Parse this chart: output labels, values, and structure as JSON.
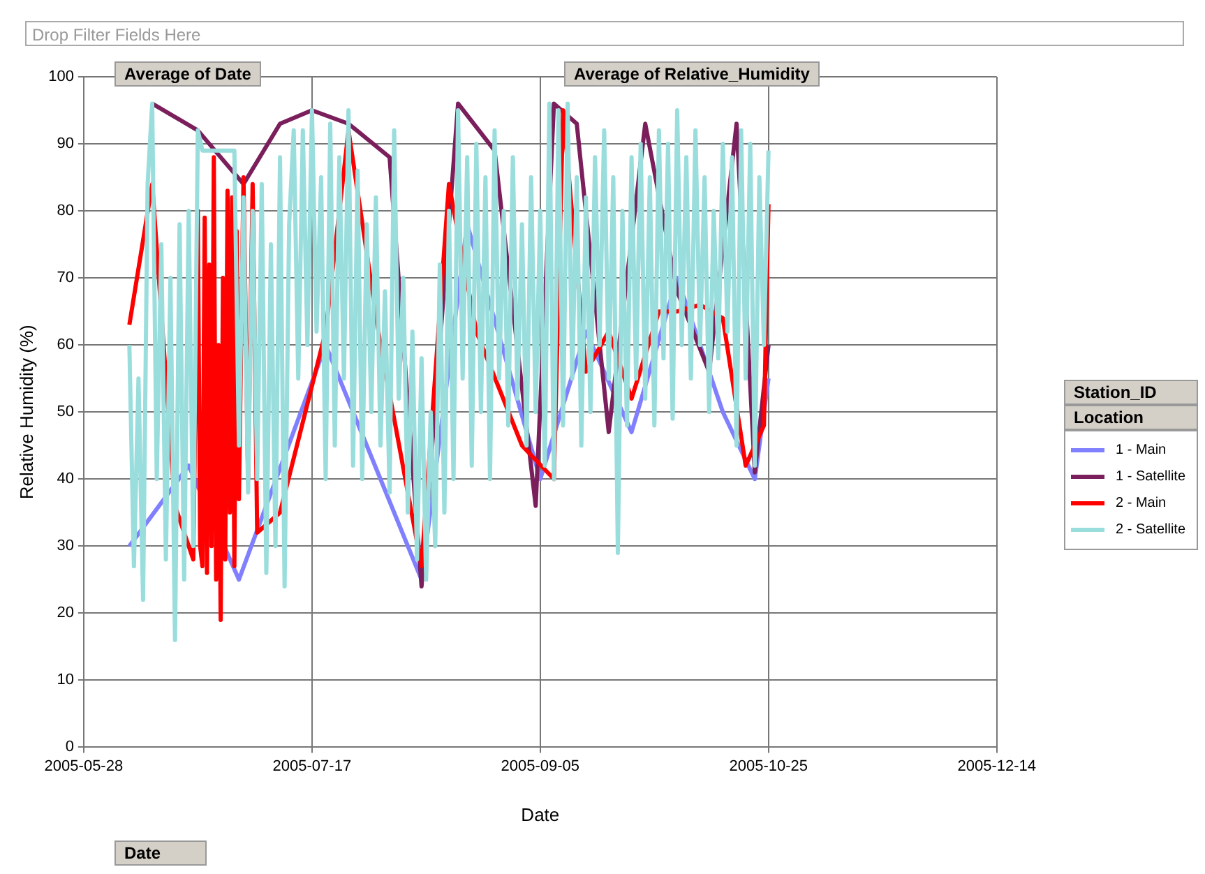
{
  "chart_data": {
    "type": "line",
    "xlabel": "Date",
    "ylabel": "Relative Humidity (%)",
    "legend_title": "Station_ID",
    "legend": "right",
    "grid": true,
    "marker": "none",
    "line_style": "solid",
    "annotations": [
      "Drop Filter Fields Here",
      "Average of Date",
      "Average of Relative_Humidity",
      "Location",
      "Date"
    ],
    "xlim": [
      "2005-05-28",
      "2005-12-14"
    ],
    "xticks": [
      "2005-05-28",
      "2005-07-17",
      "2005-09-05",
      "2005-10-25",
      "2005-12-14"
    ],
    "ylim": [
      0,
      100
    ],
    "yticks": [
      0,
      10,
      20,
      30,
      40,
      50,
      60,
      70,
      80,
      90,
      100
    ],
    "series": [
      {
        "name": "1 - Main",
        "color": "#8080ff",
        "x": [
          "2005-06-07",
          "2005-06-20",
          "2005-07-01",
          "2005-07-20",
          "2005-08-10",
          "2005-08-20",
          "2005-09-05",
          "2005-09-15",
          "2005-09-25",
          "2005-10-05",
          "2005-10-15",
          "2005-10-22",
          "2005-10-25"
        ],
        "values": [
          30,
          42,
          25,
          60,
          25,
          78,
          40,
          62,
          47,
          70,
          50,
          40,
          55
        ]
      },
      {
        "name": "1 - Satellite",
        "color": "#7a1f5c",
        "x": [
          "2005-06-12",
          "2005-06-22",
          "2005-07-02",
          "2005-07-10",
          "2005-07-17",
          "2005-07-25",
          "2005-08-03",
          "2005-08-10",
          "2005-08-18",
          "2005-08-26",
          "2005-09-04",
          "2005-09-08",
          "2005-09-13",
          "2005-09-20",
          "2005-09-28",
          "2005-10-05",
          "2005-10-12",
          "2005-10-18",
          "2005-10-22",
          "2005-10-25"
        ],
        "values": [
          96,
          92,
          84,
          93,
          95,
          93,
          88,
          24,
          96,
          89,
          36,
          96,
          93,
          47,
          93,
          68,
          56,
          93,
          41,
          60
        ]
      },
      {
        "name": "2 - Main",
        "color": "#ff0000",
        "x": [
          "2005-06-07",
          "2005-06-12",
          "2005-06-17",
          "2005-06-21",
          "2005-06-22",
          "2005-06-22T12:00",
          "2005-06-23",
          "2005-06-23T12:00",
          "2005-06-24",
          "2005-06-24T12:00",
          "2005-06-25",
          "2005-06-25T12:00",
          "2005-06-26",
          "2005-06-26T12:00",
          "2005-06-27",
          "2005-06-27T12:00",
          "2005-06-28",
          "2005-06-28T12:00",
          "2005-06-29",
          "2005-06-29T12:00",
          "2005-06-30",
          "2005-06-30T12:00",
          "2005-07-01",
          "2005-07-02",
          "2005-07-03",
          "2005-07-04",
          "2005-07-05",
          "2005-07-10",
          "2005-07-20",
          "2005-07-25",
          "2005-08-01",
          "2005-08-10",
          "2005-08-16",
          "2005-08-22",
          "2005-09-01",
          "2005-09-08",
          "2005-09-10",
          "2005-09-15",
          "2005-09-20",
          "2005-09-25",
          "2005-10-01",
          "2005-10-05",
          "2005-10-10",
          "2005-10-15",
          "2005-10-20",
          "2005-10-24",
          "2005-10-25"
        ],
        "values": [
          63,
          84,
          36,
          28,
          80,
          30,
          27,
          79,
          26,
          72,
          30,
          88,
          25,
          60,
          19,
          70,
          28,
          83,
          35,
          82,
          27,
          77,
          37,
          85,
          40,
          84,
          32,
          35,
          62,
          92,
          60,
          27,
          84,
          62,
          45,
          40,
          95,
          56,
          62,
          52,
          65,
          65,
          66,
          64,
          42,
          48,
          81
        ]
      },
      {
        "name": "2 - Satellite",
        "color": "#99dddd",
        "x": [
          "2005-06-07",
          "2005-06-08",
          "2005-06-09",
          "2005-06-10",
          "2005-06-11",
          "2005-06-12",
          "2005-06-13",
          "2005-06-14",
          "2005-06-15",
          "2005-06-16",
          "2005-06-17",
          "2005-06-18",
          "2005-06-19",
          "2005-06-20",
          "2005-06-21",
          "2005-06-22",
          "2005-06-23",
          "2005-06-30",
          "2005-07-01",
          "2005-07-02",
          "2005-07-03",
          "2005-07-04",
          "2005-07-05",
          "2005-07-06",
          "2005-07-07",
          "2005-07-08",
          "2005-07-09",
          "2005-07-10",
          "2005-07-11",
          "2005-07-12",
          "2005-07-13",
          "2005-07-14",
          "2005-07-15",
          "2005-07-16",
          "2005-07-17",
          "2005-07-18",
          "2005-07-19",
          "2005-07-20",
          "2005-07-21",
          "2005-07-22",
          "2005-07-23",
          "2005-07-24",
          "2005-07-25",
          "2005-07-26",
          "2005-07-27",
          "2005-07-28",
          "2005-07-29",
          "2005-07-30",
          "2005-07-31",
          "2005-08-01",
          "2005-08-02",
          "2005-08-03",
          "2005-08-04",
          "2005-08-05",
          "2005-08-06",
          "2005-08-07",
          "2005-08-08",
          "2005-08-09",
          "2005-08-10",
          "2005-08-11",
          "2005-08-12",
          "2005-08-13",
          "2005-08-14",
          "2005-08-15",
          "2005-08-16",
          "2005-08-17",
          "2005-08-18",
          "2005-08-19",
          "2005-08-20",
          "2005-08-21",
          "2005-08-22",
          "2005-08-23",
          "2005-08-24",
          "2005-08-25",
          "2005-08-26",
          "2005-08-27",
          "2005-08-28",
          "2005-08-29",
          "2005-08-30",
          "2005-08-31",
          "2005-09-01",
          "2005-09-02",
          "2005-09-03",
          "2005-09-04",
          "2005-09-05",
          "2005-09-06",
          "2005-09-07",
          "2005-09-08",
          "2005-09-09",
          "2005-09-10",
          "2005-09-11",
          "2005-09-12",
          "2005-09-13",
          "2005-09-14",
          "2005-09-15",
          "2005-09-16",
          "2005-09-17",
          "2005-09-18",
          "2005-09-19",
          "2005-09-20",
          "2005-09-21",
          "2005-09-22",
          "2005-09-23",
          "2005-09-24",
          "2005-09-25",
          "2005-09-26",
          "2005-09-27",
          "2005-09-28",
          "2005-09-29",
          "2005-09-30",
          "2005-10-01",
          "2005-10-02",
          "2005-10-03",
          "2005-10-04",
          "2005-10-05",
          "2005-10-06",
          "2005-10-07",
          "2005-10-08",
          "2005-10-09",
          "2005-10-10",
          "2005-10-11",
          "2005-10-12",
          "2005-10-13",
          "2005-10-14",
          "2005-10-15",
          "2005-10-16",
          "2005-10-17",
          "2005-10-18",
          "2005-10-19",
          "2005-10-20",
          "2005-10-21",
          "2005-10-22",
          "2005-10-23",
          "2005-10-24",
          "2005-10-25"
        ],
        "values": [
          60,
          27,
          55,
          22,
          84,
          96,
          40,
          75,
          28,
          70,
          16,
          78,
          25,
          80,
          30,
          92,
          89,
          89,
          45,
          82,
          38,
          80,
          40,
          84,
          26,
          75,
          30,
          88,
          24,
          78,
          92,
          55,
          92,
          60,
          95,
          62,
          85,
          40,
          93,
          45,
          88,
          55,
          95,
          42,
          86,
          40,
          78,
          50,
          82,
          45,
          68,
          38,
          92,
          52,
          70,
          35,
          62,
          28,
          58,
          25,
          50,
          30,
          72,
          35,
          80,
          40,
          95,
          55,
          88,
          42,
          90,
          50,
          85,
          40,
          92,
          55,
          80,
          48,
          88,
          52,
          78,
          45,
          85,
          50,
          80,
          42,
          96,
          40,
          95,
          48,
          96,
          55,
          85,
          45,
          82,
          50,
          88,
          60,
          92,
          55,
          85,
          29,
          80,
          48,
          88,
          55,
          90,
          52,
          85,
          48,
          92,
          58,
          90,
          49,
          95,
          60,
          88,
          55,
          92,
          60,
          85,
          50,
          80,
          58,
          90,
          62,
          88,
          45,
          92,
          55,
          90,
          42,
          85,
          60,
          89
        ]
      }
    ]
  }
}
